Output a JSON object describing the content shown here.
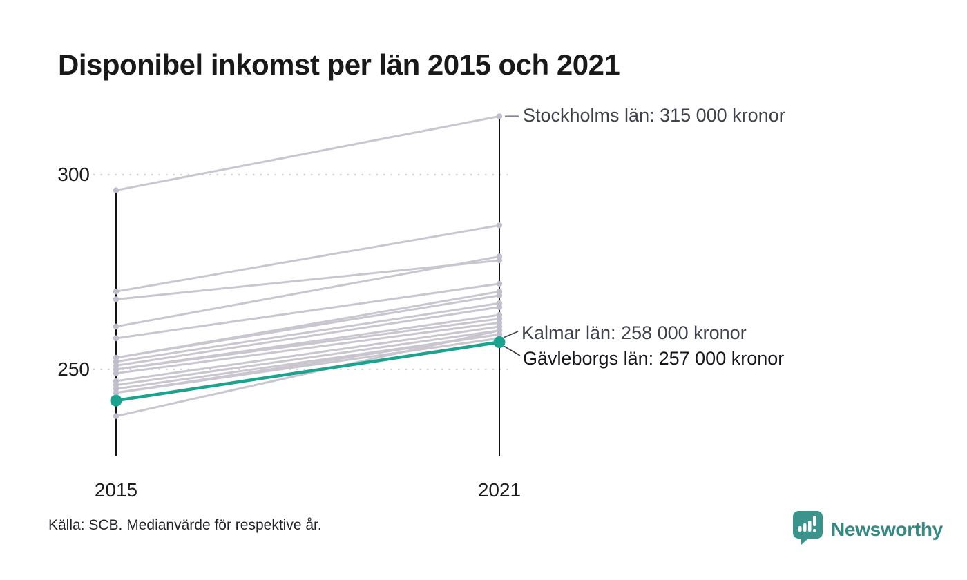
{
  "title": "Disponibel inkomst per län 2015 och 2021",
  "source": "Källa: SCB. Medianvärde för respektive år.",
  "branding": {
    "name": "Newsworthy",
    "logo_icon": "bar-chart-speech-bubble"
  },
  "colors": {
    "accent": "#1BA390",
    "muted_line": "#c9c6cf",
    "muted_dot": "#c1becb",
    "axis": "#121212",
    "grid": "#d6d3da",
    "brand": "#348a83"
  },
  "chart_data": {
    "type": "line",
    "subtype": "slope",
    "x": [
      "2015",
      "2021"
    ],
    "yticks": [
      300,
      250
    ],
    "ylim": [
      236,
      318
    ],
    "grid": "dotted-horizontal",
    "legend": "none",
    "unit_hint": "kronor (tusental)",
    "series": [
      {
        "name": "Stockholms län",
        "values": [
          296,
          315
        ],
        "highlight": false
      },
      {
        "name": "",
        "values": [
          270,
          287
        ],
        "highlight": false
      },
      {
        "name": "",
        "values": [
          268,
          278
        ],
        "highlight": false
      },
      {
        "name": "",
        "values": [
          261,
          279
        ],
        "highlight": false
      },
      {
        "name": "",
        "values": [
          258,
          272
        ],
        "highlight": false
      },
      {
        "name": "",
        "values": [
          253,
          270
        ],
        "highlight": false
      },
      {
        "name": "",
        "values": [
          253,
          269
        ],
        "highlight": false
      },
      {
        "name": "",
        "values": [
          252,
          267
        ],
        "highlight": false
      },
      {
        "name": "",
        "values": [
          251,
          266
        ],
        "highlight": false
      },
      {
        "name": "",
        "values": [
          250,
          264
        ],
        "highlight": false
      },
      {
        "name": "",
        "values": [
          250,
          263
        ],
        "highlight": false
      },
      {
        "name": "",
        "values": [
          249,
          262
        ],
        "highlight": false
      },
      {
        "name": "",
        "values": [
          247,
          261
        ],
        "highlight": false
      },
      {
        "name": "",
        "values": [
          246,
          260
        ],
        "highlight": false
      },
      {
        "name": "",
        "values": [
          245,
          259
        ],
        "highlight": false
      },
      {
        "name": "",
        "values": [
          244,
          259
        ],
        "highlight": false
      },
      {
        "name": "Kalmar län",
        "values": [
          244,
          258
        ],
        "highlight": false
      },
      {
        "name": "",
        "values": [
          238,
          260
        ],
        "highlight": false
      },
      {
        "name": "Gävleborgs län",
        "values": [
          242,
          257
        ],
        "highlight": true
      }
    ],
    "annotations": [
      {
        "text": "Stockholms län: 315 000 kronor",
        "anchor_value": 315,
        "emphasis": false
      },
      {
        "text": "Kalmar län: 258 000 kronor",
        "anchor_value": 258,
        "emphasis": false
      },
      {
        "text": "Gävleborgs län: 257 000 kronor",
        "anchor_value": 257,
        "emphasis": true
      }
    ]
  }
}
